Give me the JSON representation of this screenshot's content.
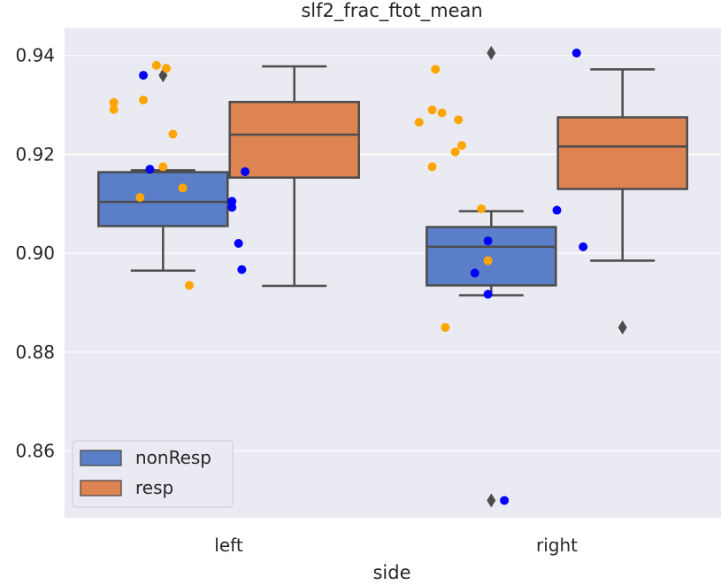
{
  "chart_data": {
    "type": "box",
    "title": "slf2_frac_ftot_mean",
    "xlabel": "side",
    "ylabel": "",
    "categories": [
      "left",
      "right"
    ],
    "ylim": [
      0.8465,
      0.9455
    ],
    "yticks": [
      0.86,
      0.88,
      0.9,
      0.92,
      0.94
    ],
    "ytick_labels": [
      "0.86",
      "0.88",
      "0.90",
      "0.92",
      "0.94"
    ],
    "grid": true,
    "legend": {
      "position": "lower-left",
      "entries": [
        "nonResp",
        "resp"
      ]
    },
    "series": [
      {
        "name": "nonResp",
        "box_color": "#5a7fc8",
        "point_color": "#0000ff",
        "boxes": [
          {
            "category": "left",
            "whislo": 0.8965,
            "q1": 0.9055,
            "median": 0.9104,
            "q3": 0.9164,
            "whishi": 0.9168,
            "fliers": [
              0.936
            ]
          },
          {
            "category": "right",
            "whislo": 0.8915,
            "q1": 0.8935,
            "median": 0.9013,
            "q3": 0.9053,
            "whishi": 0.9085,
            "fliers": [
              0.9405,
              0.85
            ]
          }
        ],
        "points": [
          {
            "category": "left",
            "offset": -0.26,
            "y": 0.936
          },
          {
            "category": "left",
            "offset": -0.24,
            "y": 0.917
          },
          {
            "category": "left",
            "offset": 0.05,
            "y": 0.9165
          },
          {
            "category": "left",
            "offset": 0.01,
            "y": 0.9105
          },
          {
            "category": "left",
            "offset": 0.01,
            "y": 0.9093
          },
          {
            "category": "left",
            "offset": 0.03,
            "y": 0.902
          },
          {
            "category": "left",
            "offset": 0.04,
            "y": 0.8967
          },
          {
            "category": "right",
            "offset": -0.21,
            "y": 0.9025
          },
          {
            "category": "right",
            "offset": -0.25,
            "y": 0.896
          },
          {
            "category": "right",
            "offset": -0.21,
            "y": 0.8917
          },
          {
            "category": "right",
            "offset": -0.16,
            "y": 0.85
          },
          {
            "category": "right",
            "offset": 0.06,
            "y": 0.9405
          },
          {
            "category": "right",
            "offset": 0.0,
            "y": 0.9087
          },
          {
            "category": "right",
            "offset": 0.08,
            "y": 0.9013
          }
        ]
      },
      {
        "name": "resp",
        "box_color": "#dd8452",
        "point_color": "#ffa500",
        "boxes": [
          {
            "category": "left",
            "whislo": 0.8934,
            "q1": 0.9153,
            "median": 0.924,
            "q3": 0.9306,
            "whishi": 0.9378,
            "fliers": []
          },
          {
            "category": "right",
            "whislo": 0.8985,
            "q1": 0.913,
            "median": 0.9216,
            "q3": 0.9275,
            "whishi": 0.9372,
            "fliers": [
              0.885
            ]
          }
        ],
        "points": [
          {
            "category": "left",
            "offset": -0.22,
            "y": 0.938
          },
          {
            "category": "left",
            "offset": -0.19,
            "y": 0.9374
          },
          {
            "category": "left",
            "offset": -0.35,
            "y": 0.9305
          },
          {
            "category": "left",
            "offset": -0.35,
            "y": 0.9291
          },
          {
            "category": "left",
            "offset": -0.26,
            "y": 0.931
          },
          {
            "category": "left",
            "offset": -0.17,
            "y": 0.9241
          },
          {
            "category": "left",
            "offset": -0.2,
            "y": 0.9175
          },
          {
            "category": "left",
            "offset": -0.27,
            "y": 0.9113
          },
          {
            "category": "left",
            "offset": -0.14,
            "y": 0.9132
          },
          {
            "category": "left",
            "offset": -0.12,
            "y": 0.8935
          },
          {
            "category": "right",
            "offset": -0.37,
            "y": 0.9372
          },
          {
            "category": "right",
            "offset": -0.38,
            "y": 0.929
          },
          {
            "category": "right",
            "offset": -0.35,
            "y": 0.9284
          },
          {
            "category": "right",
            "offset": -0.42,
            "y": 0.9265
          },
          {
            "category": "right",
            "offset": -0.3,
            "y": 0.927
          },
          {
            "category": "right",
            "offset": -0.29,
            "y": 0.9218
          },
          {
            "category": "right",
            "offset": -0.31,
            "y": 0.9205
          },
          {
            "category": "right",
            "offset": -0.38,
            "y": 0.9175
          },
          {
            "category": "right",
            "offset": -0.23,
            "y": 0.909
          },
          {
            "category": "right",
            "offset": -0.21,
            "y": 0.8985
          },
          {
            "category": "right",
            "offset": -0.34,
            "y": 0.885
          }
        ]
      }
    ]
  }
}
